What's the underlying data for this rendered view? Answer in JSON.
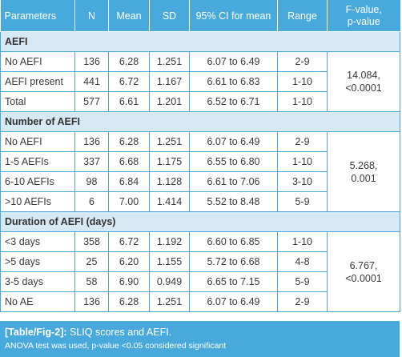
{
  "headers": [
    "Parameters",
    "N",
    "Mean",
    "SD",
    "95% CI for mean",
    "Range",
    "F-value,\np-value"
  ],
  "header_line1_fvalue": "F-value,",
  "header_line2_fvalue": "p-value",
  "sections": [
    {
      "title": "AEFI",
      "rows": [
        [
          "No AEFI",
          "136",
          "6.28",
          "1.251",
          "6.07 to 6.49",
          "2-9"
        ],
        [
          "AEFI present",
          "441",
          "6.72",
          "1.167",
          "6.61 to 6.83",
          "1-10"
        ],
        [
          "Total",
          "577",
          "6.61",
          "1.201",
          "6.52 to 6.71",
          "1-10"
        ]
      ],
      "f_value": "14.084,",
      "p_value": "<0.0001"
    },
    {
      "title": "Number of AEFI",
      "rows": [
        [
          "No AEFI",
          "136",
          "6.28",
          "1.251",
          "6.07 to 6.49",
          "2-9"
        ],
        [
          "1-5 AEFIs",
          "337",
          "6.68",
          "1.175",
          "6.55 to 6.80",
          "1-10"
        ],
        [
          "6-10 AEFIs",
          "98",
          "6.84",
          "1.128",
          "6.61 to 7.06",
          "3-10"
        ],
        [
          ">10 AEFIs",
          "6",
          "7.00",
          "1.414",
          "5.52 to 8.48",
          "5-9"
        ]
      ],
      "f_value": "5.268,",
      "p_value": "0.001"
    },
    {
      "title": "Duration of AEFI (days)",
      "rows": [
        [
          "<3 days",
          "358",
          "6.72",
          "1.192",
          "6.60 to 6.85",
          "1-10"
        ],
        [
          ">5 days",
          "25",
          "6.20",
          "1.155",
          "5.72 to 6.68",
          "4-8"
        ],
        [
          "3-5 days",
          "58",
          "6.90",
          "0.949",
          "6.65 to 7.15",
          "5-9"
        ],
        [
          "No AE",
          "136",
          "6.28",
          "1.251",
          "6.07 to 6.49",
          "2-9"
        ]
      ],
      "f_value": "6.767,",
      "p_value": "<0.0001"
    }
  ],
  "caption": {
    "ref": "[Table/Fig-2]:",
    "title": " SLIQ scores and AEFI.",
    "note": "ANOVA test was used, p-value <0.05 considered significant"
  },
  "colors": {
    "header_bg": "#48a9dd",
    "section_bg": "#d7e9f5",
    "border": "#4aa6d6"
  }
}
